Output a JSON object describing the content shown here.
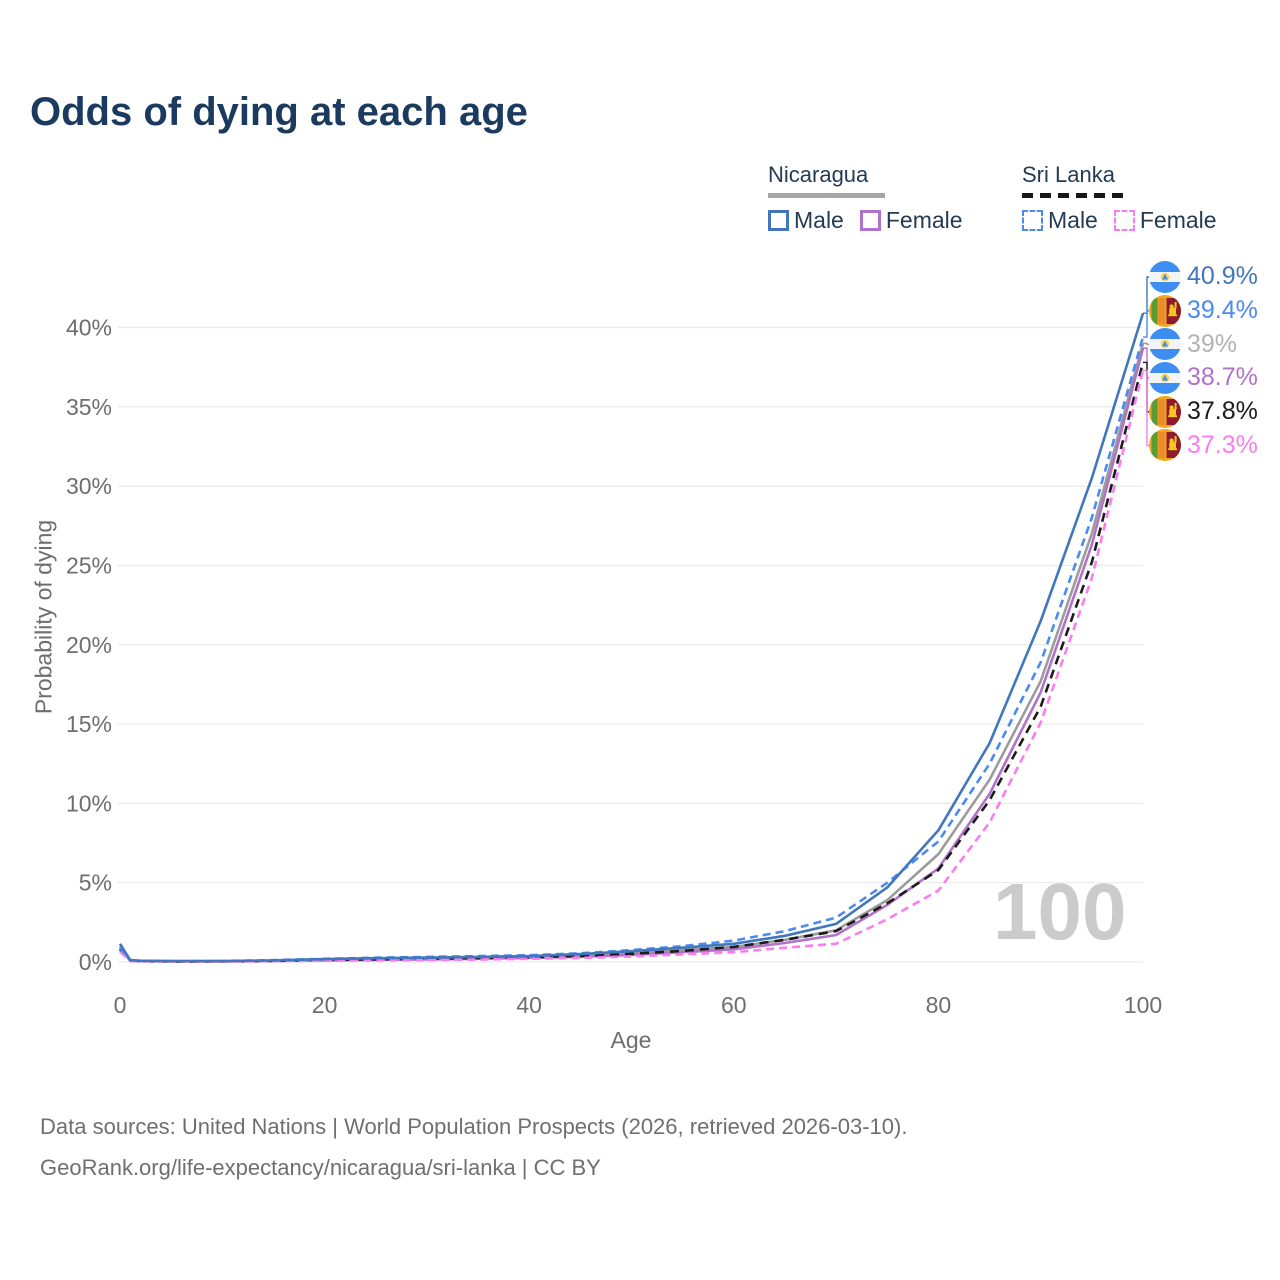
{
  "title": "Odds of dying at each age",
  "legend": {
    "nicaragua": {
      "name": "Nicaragua",
      "male": "Male",
      "female": "Female",
      "line_color": "#a6a6a6",
      "line_style": "solid"
    },
    "sri_lanka": {
      "name": "Sri Lanka",
      "male": "Male",
      "female": "Female",
      "line_color": "#161616",
      "line_style": "dashed"
    }
  },
  "axes": {
    "x_label": "Age",
    "y_label": "Probability of dying",
    "x_tick_labels": [
      "0",
      "20",
      "40",
      "60",
      "80",
      "100"
    ],
    "y_tick_labels": [
      "0%",
      "5%",
      "10%",
      "15%",
      "20%",
      "25%",
      "30%",
      "35%",
      "40%"
    ]
  },
  "chart_data": {
    "type": "line",
    "title": "Odds of dying at each age",
    "xlabel": "Age",
    "ylabel": "Probability of dying",
    "xlim": [
      0,
      100
    ],
    "ylim": [
      0,
      43
    ],
    "grid": "horizontal",
    "legend_position": "top-right",
    "watermark": "100",
    "x": [
      0,
      1,
      2,
      5,
      10,
      15,
      20,
      25,
      30,
      35,
      40,
      45,
      50,
      55,
      60,
      65,
      70,
      75,
      80,
      85,
      90,
      95,
      100
    ],
    "series": [
      {
        "id": "nicaragua-male",
        "name": "Nicaragua Male",
        "country": "Nicaragua",
        "sex": "Male",
        "color": "#4277bd",
        "label_color": "#4277bd",
        "dash": null,
        "flag": "nicaragua-flag",
        "end_label": "40.9%",
        "end_value": 40.9,
        "values": [
          1.15,
          0.12,
          0.08,
          0.06,
          0.06,
          0.1,
          0.18,
          0.24,
          0.28,
          0.32,
          0.38,
          0.5,
          0.68,
          0.9,
          1.15,
          1.65,
          2.4,
          4.7,
          8.3,
          13.8,
          21.5,
          30.5,
          40.9
        ]
      },
      {
        "id": "sri-lanka-male",
        "name": "Sri Lanka Male",
        "country": "Sri Lanka",
        "sex": "Male",
        "color": "#4b8af2",
        "label_color": "#4b8af2",
        "dash": "8 5",
        "flag": "sri-lanka-flag",
        "end_label": "39.4%",
        "end_value": 39.4,
        "values": [
          0.9,
          0.1,
          0.06,
          0.05,
          0.06,
          0.12,
          0.2,
          0.27,
          0.32,
          0.37,
          0.43,
          0.55,
          0.75,
          1.0,
          1.35,
          1.95,
          2.8,
          5.0,
          7.6,
          12.5,
          18.9,
          28.0,
          39.4
        ]
      },
      {
        "id": "nicaragua-both",
        "name": "Nicaragua (both sexes)",
        "country": "Nicaragua",
        "sex": "All",
        "color": "#9c9c9c",
        "label_color": "#b3b3b3",
        "dash": null,
        "flag": "nicaragua-flag",
        "end_label": "39%",
        "end_value": 39.0,
        "values": [
          1.0,
          0.1,
          0.07,
          0.05,
          0.05,
          0.08,
          0.14,
          0.18,
          0.22,
          0.26,
          0.31,
          0.4,
          0.55,
          0.75,
          0.95,
          1.4,
          2.0,
          3.9,
          6.8,
          11.5,
          17.7,
          27.0,
          39.0
        ]
      },
      {
        "id": "nicaragua-female",
        "name": "Nicaragua Female",
        "country": "Nicaragua",
        "sex": "Female",
        "color": "#b173c9",
        "label_color": "#b173c9",
        "dash": null,
        "flag": "nicaragua-flag",
        "end_label": "38.7%",
        "end_value": 38.7,
        "values": [
          0.85,
          0.09,
          0.06,
          0.04,
          0.04,
          0.06,
          0.1,
          0.13,
          0.16,
          0.2,
          0.26,
          0.33,
          0.45,
          0.62,
          0.8,
          1.2,
          1.7,
          3.6,
          5.9,
          10.6,
          17.0,
          26.3,
          38.7
        ]
      },
      {
        "id": "sri-lanka-both",
        "name": "Sri Lanka (both sexes)",
        "country": "Sri Lanka",
        "sex": "All",
        "color": "#1c1c1c",
        "label_color": "#1c1c1c",
        "dash": "9 6",
        "flag": "sri-lanka-flag",
        "end_label": "37.8%",
        "end_value": 37.8,
        "values": [
          0.78,
          0.08,
          0.05,
          0.04,
          0.04,
          0.07,
          0.13,
          0.17,
          0.21,
          0.25,
          0.3,
          0.38,
          0.52,
          0.7,
          0.95,
          1.4,
          1.95,
          3.7,
          5.8,
          10.2,
          16.1,
          25.2,
          37.8
        ]
      },
      {
        "id": "sri-lanka-female",
        "name": "Sri Lanka Female",
        "country": "Sri Lanka",
        "sex": "Female",
        "color": "#fa7df0",
        "label_color": "#fa7df0",
        "dash": "8 5",
        "flag": "sri-lanka-flag",
        "end_label": "37.3%",
        "end_value": 37.3,
        "values": [
          0.65,
          0.07,
          0.04,
          0.03,
          0.03,
          0.05,
          0.08,
          0.1,
          0.12,
          0.15,
          0.2,
          0.26,
          0.35,
          0.48,
          0.62,
          0.9,
          1.15,
          2.7,
          4.5,
          8.8,
          15.1,
          24.2,
          37.3
        ]
      }
    ]
  },
  "footer": {
    "line1": "Data sources: United Nations | World Population Prospects (2026, retrieved 2026-03-10).",
    "line2": "GeoRank.org/life-expectancy/nicaragua/sri-lanka | CC BY"
  },
  "colors": {
    "title_text": "#1b3a5f",
    "axis_text": "#6e6e6e",
    "gridline": "#e9e9e9",
    "watermark": "#cbcbcb",
    "legend_text": "#243b55"
  }
}
